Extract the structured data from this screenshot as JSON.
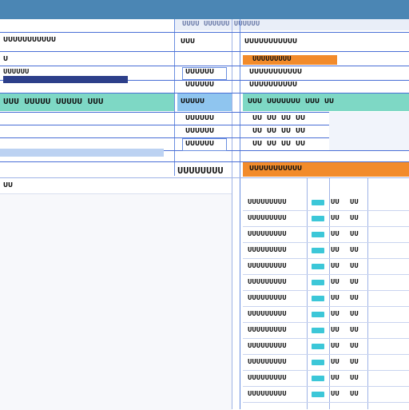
{
  "colors": {
    "titlebar": "#4b86b4",
    "teal": "#7ed8c5",
    "orange": "#f28b2b",
    "navy": "#2d3f8a",
    "grid": "#4a6fd6",
    "panel": "#f7f8fb",
    "cyan": "#3cc7d8"
  },
  "header": {
    "title": "UUUU UUUUUU UUUUUU"
  },
  "left": {
    "row1": "UUUUUUUUUUU",
    "row2": "U",
    "row3": "UUUUUU",
    "teal_row": "UUU UUUUU UUUUU UUU",
    "section": "UUUUUUUU",
    "sub": "UU"
  },
  "mid": {
    "col1": "UUU",
    "col2": "UUUUUU",
    "col3": "UUUUUU",
    "col4": "UUUUU",
    "col5": "UUUUUU",
    "col6": "UUUUUU",
    "col7": "UUUUUU"
  },
  "right": {
    "col_hdr": "UUUUUUUUUUU",
    "orange_label": "UUUUUUUUU",
    "r1": "UUUUUUUUUUU",
    "r2": "UUUUUUUUUU",
    "teal_row": "UUU UUUUUUU UUU UU",
    "r3": "UU UU UU UU",
    "r4": "UU UU UU UU",
    "r5": "UU UU UU UU",
    "orange_header": "UUUUUUUUUUU",
    "table": [
      {
        "name": "UUUUUUUUU",
        "v1": "UU",
        "v2": "UU"
      },
      {
        "name": "UUUUUUUUU",
        "v1": "UU",
        "v2": "UU"
      },
      {
        "name": "UUUUUUUUU",
        "v1": "UU",
        "v2": "UU"
      },
      {
        "name": "UUUUUUUUU",
        "v1": "UU",
        "v2": "UU"
      },
      {
        "name": "UUUUUUUUU",
        "v1": "UU",
        "v2": "UU"
      },
      {
        "name": "UUUUUUUUU",
        "v1": "UU",
        "v2": "UU"
      },
      {
        "name": "UUUUUUUUU",
        "v1": "UU",
        "v2": "UU"
      },
      {
        "name": "UUUUUUUUU",
        "v1": "UU",
        "v2": "UU"
      },
      {
        "name": "UUUUUUUUU",
        "v1": "UU",
        "v2": "UU"
      },
      {
        "name": "UUUUUUUUU",
        "v1": "UU",
        "v2": "UU"
      },
      {
        "name": "UUUUUUUUU",
        "v1": "UU",
        "v2": "UU"
      },
      {
        "name": "UUUUUUUUU",
        "v1": "UU",
        "v2": "UU"
      },
      {
        "name": "UUUUUUUUU",
        "v1": "UU",
        "v2": "UU"
      }
    ]
  }
}
